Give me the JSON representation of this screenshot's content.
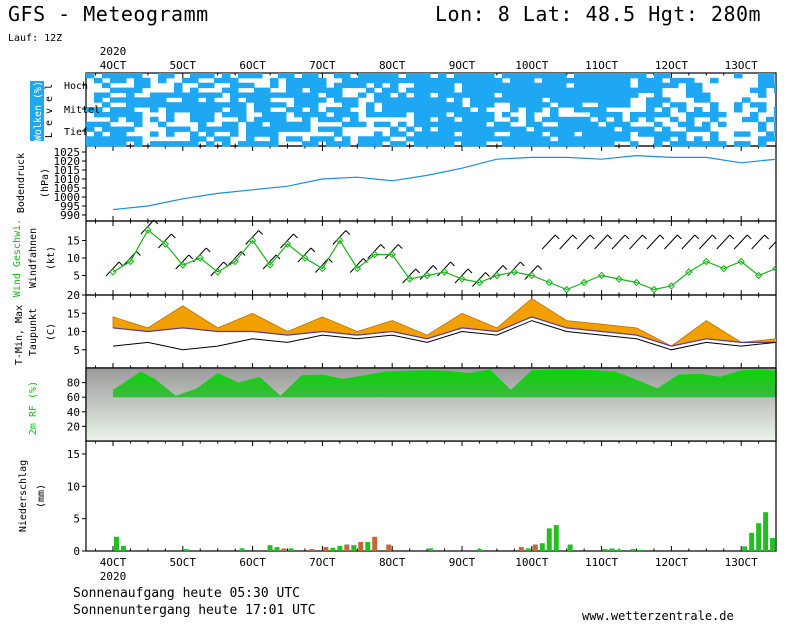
{
  "header": {
    "title": "GFS - Meteogramm",
    "coords": "Lon: 8 Lat: 48.5 Hgt: 280m",
    "run": "Lauf: 12Z",
    "year": "2020"
  },
  "footer": {
    "sunrise": "Sonnenaufgang heute 05:30 UTC",
    "sunset": "Sonnenuntergang heute 17:01 UTC",
    "credit": "www.wetterzentrale.de"
  },
  "colors": {
    "cloud": "#1ea7f2",
    "pressure": "#1a8fd8",
    "gust": "#18b418",
    "tmax": "#f2a000",
    "tmin": "#a8d820",
    "humidity": "#12c412",
    "precip_rain": "#20c020",
    "precip_conv": "#c06a3a"
  },
  "chart_data": [
    {
      "type": "heatmap",
      "title": "Wolken (%)",
      "ylabel": "Level",
      "levels": [
        "Hoch",
        "Mittel",
        "Tief"
      ],
      "days": [
        "4OCT",
        "5OCT",
        "6OCT",
        "7OCT",
        "8OCT",
        "9OCT",
        "10OCT",
        "11OCT",
        "12OCT",
        "13OCT"
      ]
    },
    {
      "type": "line",
      "ylabel_lines": [
        "Bodendruck",
        "(hPa)"
      ],
      "ylim": [
        990,
        1025
      ],
      "yticks": [
        1025,
        1020,
        1015,
        1010,
        1005,
        1000,
        995,
        990
      ],
      "x_days": [
        0,
        0.5,
        1,
        1.5,
        2,
        2.5,
        3,
        3.5,
        4,
        4.5,
        5,
        5.5,
        6,
        6.5,
        7,
        7.5,
        8,
        8.5,
        9,
        9.5
      ],
      "values": [
        993,
        995,
        999,
        1002,
        1004,
        1006,
        1010,
        1011,
        1009,
        1012,
        1016,
        1021,
        1022,
        1022,
        1021,
        1023,
        1022,
        1022,
        1019,
        1021
      ]
    },
    {
      "type": "line",
      "ylabel_lines": [
        "Wind Geschwi.",
        "Windfahnen",
        "(kt)"
      ],
      "ylim": [
        0,
        20
      ],
      "yticks": [
        15,
        10,
        5
      ],
      "x_days": [
        0,
        0.25,
        0.5,
        0.75,
        1,
        1.25,
        1.5,
        1.75,
        2,
        2.25,
        2.5,
        2.75,
        3,
        3.25,
        3.5,
        3.75,
        4,
        4.25,
        4.5,
        4.75,
        5,
        5.25,
        5.5,
        5.75,
        6,
        6.25,
        6.5,
        6.75,
        7,
        7.25,
        7.5,
        7.75,
        8,
        8.25,
        8.5,
        8.75,
        9,
        9.25,
        9.5,
        9.75
      ],
      "values": [
        6,
        9,
        18,
        14,
        8,
        10,
        6,
        9,
        15,
        8,
        14,
        10,
        7,
        15,
        7,
        11,
        11,
        4,
        5,
        6,
        4,
        3,
        5,
        6,
        5,
        3,
        1,
        3,
        5,
        4,
        3,
        1,
        2,
        6,
        9,
        7,
        9,
        5,
        7,
        12
      ]
    },
    {
      "type": "line",
      "ylabel_lines": [
        "T-Min, Max",
        "Taupunkt",
        "(C)"
      ],
      "ylim": [
        0,
        20
      ],
      "yticks": [
        20,
        15,
        10,
        5
      ],
      "series": [
        {
          "name": "T-Max",
          "x_days": [
            0,
            0.5,
            1,
            1.5,
            2,
            2.5,
            3,
            3.5,
            4,
            4.5,
            5,
            5.5,
            6,
            6.5,
            7,
            7.5,
            8,
            8.5,
            9,
            9.5,
            9.8
          ],
          "values": [
            14,
            11,
            17,
            11,
            15,
            10,
            14,
            10,
            13,
            9,
            15,
            11,
            19,
            13,
            12,
            11,
            6,
            13,
            7,
            8,
            11
          ]
        },
        {
          "name": "T-Min",
          "x_days": [
            0,
            0.5,
            1,
            1.5,
            2,
            2.5,
            3,
            3.5,
            4,
            4.5,
            5,
            5.5,
            6,
            6.5,
            7,
            7.5,
            8,
            8.5,
            9,
            9.5,
            9.8
          ],
          "values": [
            11,
            10,
            11,
            10,
            10,
            9,
            10,
            9,
            10,
            8,
            11,
            10,
            14,
            11,
            10,
            9,
            6,
            8,
            7,
            7,
            8
          ]
        },
        {
          "name": "Taupunkt",
          "x_days": [
            0,
            0.5,
            1,
            1.5,
            2,
            2.5,
            3,
            3.5,
            4,
            4.5,
            5,
            5.5,
            6,
            6.5,
            7,
            7.5,
            8,
            8.5,
            9,
            9.5,
            9.8
          ],
          "values": [
            6,
            7,
            5,
            6,
            8,
            7,
            9,
            8,
            9,
            7,
            10,
            9,
            13,
            10,
            9,
            8,
            5,
            7,
            6,
            7,
            7
          ]
        }
      ]
    },
    {
      "type": "area",
      "ylabel": "2m RF (%)",
      "ylim": [
        0,
        100
      ],
      "yticks": [
        80,
        60,
        40,
        20
      ],
      "x_days": [
        0,
        0.4,
        0.6,
        0.9,
        1.2,
        1.5,
        1.8,
        2.1,
        2.4,
        2.7,
        3,
        3.3,
        3.6,
        3.9,
        4.2,
        4.5,
        4.8,
        5.1,
        5.4,
        5.7,
        6,
        6.3,
        6.6,
        6.9,
        7.2,
        7.5,
        7.8,
        8.1,
        8.4,
        8.7,
        9,
        9.3,
        9.6,
        9.8
      ],
      "values": [
        70,
        95,
        85,
        62,
        72,
        93,
        80,
        88,
        62,
        90,
        91,
        85,
        90,
        95,
        96,
        97,
        96,
        93,
        98,
        70,
        97,
        98,
        98,
        97,
        95,
        84,
        72,
        91,
        92,
        88,
        97,
        98,
        95,
        80
      ]
    },
    {
      "type": "bar",
      "ylabel_lines": [
        "Niederschlag",
        "(mm)"
      ],
      "ylim": [
        0,
        17
      ],
      "yticks": [
        15,
        10,
        5,
        0
      ],
      "series": [
        {
          "name": "rain",
          "x_days": [
            0.05,
            0.15,
            1.05,
            1.85,
            2.25,
            2.35,
            2.55,
            3.15,
            3.25,
            3.45,
            3.65,
            4.55,
            5.25,
            5.95,
            6.15,
            6.25,
            6.35,
            6.55,
            7.05,
            7.15,
            7.25,
            7.45,
            7.55,
            9.05,
            9.15,
            9.25,
            9.35,
            9.45,
            9.55,
            9.65
          ],
          "values": [
            2.2,
            0.8,
            0.3,
            0.4,
            0.9,
            0.6,
            0.4,
            0.5,
            0.8,
            0.9,
            1.4,
            0.4,
            0.3,
            0.4,
            1.2,
            3.5,
            4.0,
            1.0,
            0.3,
            0.4,
            0.2,
            0.3,
            0.2,
            0.7,
            2.8,
            4.3,
            6.0,
            2.0,
            0.6,
            0.2
          ]
        },
        {
          "name": "convective",
          "x_days": [
            2.45,
            2.85,
            3.05,
            3.35,
            3.55,
            3.75,
            3.95,
            5.85,
            6.05
          ],
          "values": [
            0.4,
            0.3,
            0.6,
            1.0,
            1.4,
            2.2,
            1.0,
            0.6,
            1.0
          ]
        }
      ]
    }
  ]
}
